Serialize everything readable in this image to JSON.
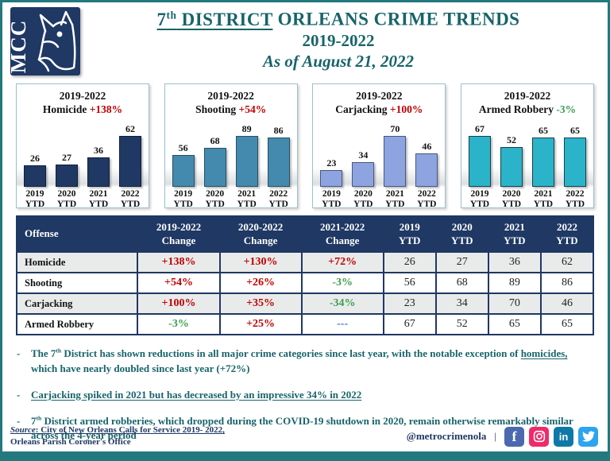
{
  "header": {
    "logo_text": "MCC",
    "title_num": "7",
    "title_sup": "th",
    "title_underlined": " DISTRICT",
    "title_rest": " ORLEANS CRIME TRENDS",
    "title_line2": "2019-2022",
    "title_line3": "As of August 21, 2022"
  },
  "chart_data": [
    {
      "type": "bar",
      "title": "2019-2022",
      "name": "Homicide",
      "change": "+138%",
      "change_color": "#C00000",
      "categories": [
        "2019 YTD",
        "2020 YTD",
        "2021 YTD",
        "2022 YTD"
      ],
      "values": [
        26,
        27,
        36,
        62
      ],
      "bar_color": "#1F3864",
      "bar_border": "#111f38",
      "ylim": [
        0,
        62
      ]
    },
    {
      "type": "bar",
      "title": "2019-2022",
      "name": "Shooting",
      "change": "+54%",
      "change_color": "#C00000",
      "categories": [
        "2019 YTD",
        "2020 YTD",
        "2021 YTD",
        "2022 YTD"
      ],
      "values": [
        56,
        68,
        89,
        86
      ],
      "bar_color": "#4489AE",
      "bar_border": "#274f66",
      "ylim": [
        0,
        89
      ]
    },
    {
      "type": "bar",
      "title": "2019-2022",
      "name": "Carjacking",
      "change": "+100%",
      "change_color": "#C00000",
      "categories": [
        "2019 YTD",
        "2020 YTD",
        "2021 YTD",
        "2022 YTD"
      ],
      "values": [
        23,
        34,
        70,
        46
      ],
      "bar_color": "#8DA4E0",
      "bar_border": "#46577f",
      "ylim": [
        0,
        70
      ]
    },
    {
      "type": "bar",
      "title": "2019-2022",
      "name": "Armed Robbery",
      "change": "-3%",
      "change_color": "#3F9E4F",
      "categories": [
        "2019 YTD",
        "2020 YTD",
        "2021 YTD",
        "2022 YTD"
      ],
      "values": [
        67,
        52,
        65,
        65
      ],
      "bar_color": "#2BB3C9",
      "bar_border": "#17414e",
      "ylim": [
        0,
        67
      ]
    }
  ],
  "table": {
    "headers": [
      "Offense",
      "2019-2022\nChange",
      "2020-2022\nChange",
      "2021-2022\nChange",
      "2019\nYTD",
      "2020\nYTD",
      "2021\nYTD",
      "2022\nYTD"
    ],
    "change_colors": {
      "increase": "#C00000",
      "decrease": "#3F9E4F",
      "neutral": "#4472C4"
    },
    "rows": [
      {
        "offense": "Homicide",
        "changes": [
          "+138%",
          "+130%",
          "+72%"
        ],
        "ytd": [
          "26",
          "27",
          "36",
          "62"
        ]
      },
      {
        "offense": "Shooting",
        "changes": [
          "+54%",
          "+26%",
          "-3%"
        ],
        "ytd": [
          "56",
          "68",
          "89",
          "86"
        ]
      },
      {
        "offense": "Carjacking",
        "changes": [
          "+100%",
          "+35%",
          "-34%"
        ],
        "ytd": [
          "23",
          "34",
          "70",
          "46"
        ]
      },
      {
        "offense": "Armed Robbery",
        "changes": [
          "-3%",
          "+25%",
          "---"
        ],
        "ytd": [
          "67",
          "52",
          "65",
          "65"
        ]
      }
    ]
  },
  "bullets": [
    [
      {
        "t": "The 7"
      },
      {
        "t": "th",
        "sup": true
      },
      {
        "t": " District has shown reductions in all major crime categories since last year, with the notable exception of "
      },
      {
        "t": "homicides,",
        "u": true
      },
      {
        "t": " which have nearly doubled since last year (+72%)"
      }
    ],
    [
      {
        "t": "Carjacking spiked in 2021 but has decreased by an impressive 34% in 2022",
        "u": true
      }
    ],
    [
      {
        "t": "7"
      },
      {
        "t": "th",
        "sup": true
      },
      {
        "t": " District armed robberies, which dropped during the COVID-19 shutdown in 2020, remain otherwise remarkably similar across the 4-year period"
      }
    ]
  ],
  "footer": {
    "source_label": "Source",
    "source_rest": ": City of New Orleans Calls for Service 2019- 2022,",
    "source_line2": "Orleans Parish Coroner's Office",
    "handle": "@metrocrimenola",
    "separator": "|",
    "social": [
      {
        "name": "facebook",
        "label": "f"
      },
      {
        "name": "instagram",
        "label": ""
      },
      {
        "name": "linkedin",
        "label": "in"
      },
      {
        "name": "twitter",
        "label": ""
      }
    ]
  }
}
